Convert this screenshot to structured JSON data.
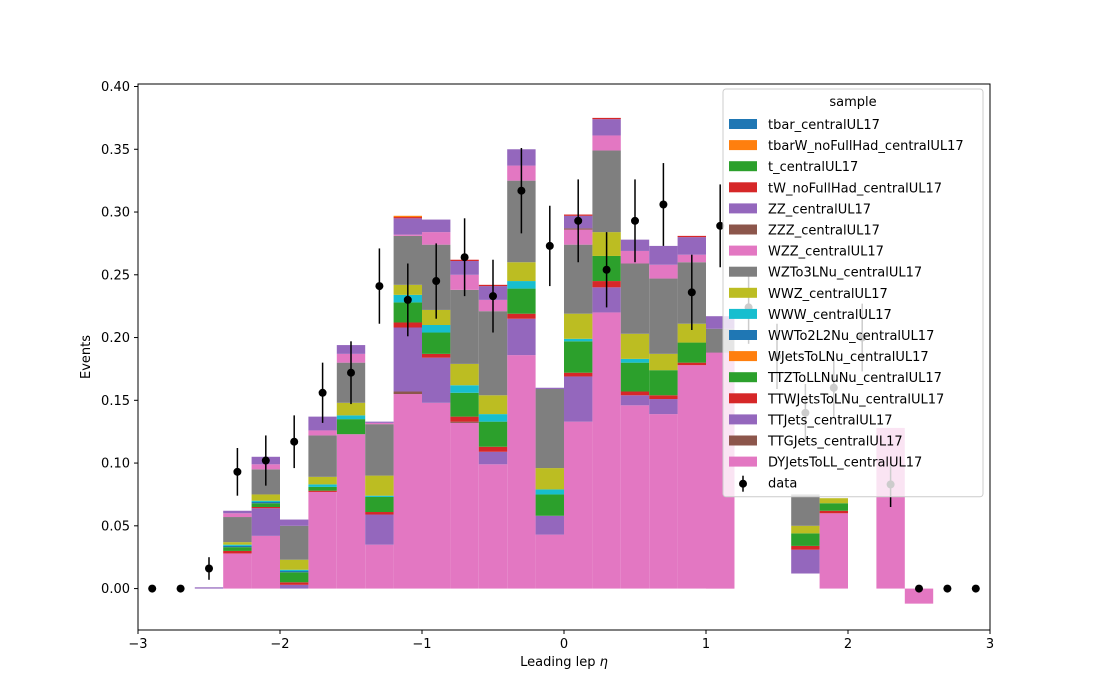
{
  "chart_data": {
    "type": "bar",
    "xlabel": "Leading lep",
    "xlabel_symbol": "η",
    "ylabel": "Events",
    "xlim": [
      -3,
      3
    ],
    "ylim": [
      -0.033,
      0.402
    ],
    "xticks": [
      -3,
      -2,
      -1,
      0,
      1,
      2,
      3
    ],
    "xtick_labels": [
      "−3",
      "−2",
      "−1",
      "0",
      "1",
      "2",
      "3"
    ],
    "yticks": [
      0.0,
      0.05,
      0.1,
      0.15,
      0.2,
      0.25,
      0.3,
      0.35,
      0.4
    ],
    "ytick_labels": [
      "0.00",
      "0.05",
      "0.10",
      "0.15",
      "0.20",
      "0.25",
      "0.30",
      "0.35",
      "0.40"
    ],
    "legend": {
      "title": "sample",
      "placement": "top-right"
    },
    "bin_edges": [
      -3.0,
      -2.8,
      -2.6,
      -2.4,
      -2.2,
      -2.0,
      -1.8,
      -1.6,
      -1.4,
      -1.2,
      -1.0,
      -0.8,
      -0.6,
      -0.4,
      -0.2,
      0.0,
      0.2,
      0.4,
      0.6,
      0.8,
      1.0,
      1.2,
      1.4,
      1.6,
      1.8,
      2.0,
      2.2,
      2.4,
      2.6,
      2.8,
      3.0
    ],
    "series": [
      {
        "name": "DYJetsToLL_centralUL17",
        "color": "#e377c2",
        "values": [
          0,
          0,
          0,
          0.028,
          0.042,
          0,
          0.077,
          0.123,
          0.035,
          0.155,
          0.148,
          0.132,
          0.099,
          0.186,
          0.043,
          0.133,
          0.22,
          0.146,
          0.139,
          0.178,
          0.112,
          0,
          0,
          0,
          0,
          0,
          0,
          0,
          0,
          0
        ]
      },
      {
        "name": "TTGJets_centralUL17",
        "color": "#8c564b",
        "values": [
          0,
          0,
          0,
          0,
          0,
          0,
          0,
          0,
          0,
          0.002,
          0,
          0.001,
          0,
          0,
          0,
          0,
          0,
          0,
          0,
          0,
          0,
          0,
          0,
          0,
          0,
          0,
          0,
          0,
          0,
          0
        ]
      },
      {
        "name": "TTJets_centralUL17",
        "color": "#9467bd",
        "values": [
          0,
          0,
          0.001,
          0,
          0.022,
          0.003,
          0,
          0,
          0.024,
          0.051,
          0.036,
          0,
          0.01,
          0.029,
          0.015,
          0.036,
          0.02,
          0.008,
          0.012,
          0,
          0,
          0,
          0,
          0,
          0,
          0,
          0,
          0,
          0,
          0
        ]
      },
      {
        "name": "TTWJetsToLNu_centralUL17",
        "color": "#d62728",
        "values": [
          0,
          0,
          0,
          0.002,
          0.001,
          0.002,
          0.001,
          0,
          0.002,
          0.004,
          0.003,
          0.004,
          0.004,
          0.004,
          0,
          0.003,
          0.005,
          0.003,
          0.003,
          0.002,
          0,
          0,
          0,
          0,
          0,
          0,
          0,
          0,
          0,
          0
        ]
      },
      {
        "name": "TTZToLLNuNu_centralUL17",
        "color": "#2ca02c",
        "values": [
          0,
          0,
          0,
          0.003,
          0.003,
          0.008,
          0.003,
          0.012,
          0.012,
          0.016,
          0.017,
          0.019,
          0.02,
          0.02,
          0.017,
          0.025,
          0.02,
          0.023,
          0.02,
          0.016,
          0.01,
          0,
          0,
          0,
          0,
          0,
          0,
          0,
          0,
          0
        ]
      },
      {
        "name": "WJetsToLNu_centralUL17",
        "color": "#ff7f0e",
        "values": [
          0,
          0,
          0,
          0,
          0,
          0,
          0,
          0,
          0,
          0,
          0,
          0,
          0,
          0,
          0,
          0,
          0,
          0,
          0,
          0,
          0,
          0,
          0,
          0,
          0,
          0,
          0,
          0,
          0,
          0
        ]
      },
      {
        "name": "WWTo2L2Nu_centralUL17",
        "color": "#1f77b4",
        "values": [
          0,
          0,
          0,
          0.001,
          0.001,
          0.001,
          0,
          0,
          0,
          0,
          0,
          0,
          0,
          0,
          0,
          0,
          0,
          0,
          0,
          0,
          0,
          0,
          0,
          0,
          0,
          0,
          0,
          0,
          0,
          0
        ]
      },
      {
        "name": "WWW_centralUL17",
        "color": "#17becf",
        "values": [
          0,
          0,
          0,
          0.001,
          0.001,
          0.001,
          0.002,
          0.003,
          0.001,
          0.006,
          0.006,
          0.006,
          0.006,
          0.006,
          0.004,
          0.002,
          0,
          0.003,
          0,
          0,
          0.005,
          0,
          0,
          0,
          0,
          0,
          0,
          0,
          0,
          0
        ]
      },
      {
        "name": "WWZ_centralUL17",
        "color": "#bcbd22",
        "values": [
          0,
          0,
          0,
          0.002,
          0.005,
          0.008,
          0.006,
          0.01,
          0.016,
          0.008,
          0.012,
          0.017,
          0.015,
          0.015,
          0.017,
          0.02,
          0.019,
          0.02,
          0.013,
          0.015,
          0.01,
          0,
          0,
          0,
          0,
          0,
          0,
          0,
          0,
          0
        ]
      },
      {
        "name": "WZTo3LNu_centralUL17",
        "color": "#7f7f7f",
        "values": [
          0,
          0,
          0,
          0.02,
          0.02,
          0.027,
          0.033,
          0.032,
          0.041,
          0.039,
          0.052,
          0.059,
          0.067,
          0.065,
          0.063,
          0.055,
          0.065,
          0.056,
          0.06,
          0.049,
          0.07,
          0,
          0,
          0,
          0,
          0,
          0,
          0,
          0,
          0
        ]
      },
      {
        "name": "WZZ_centralUL17",
        "color": "#e377c2",
        "values": [
          0,
          0,
          0,
          0.003,
          0.004,
          0,
          0.004,
          0.007,
          0.001,
          0.001,
          0.01,
          0.012,
          0.009,
          0.012,
          0,
          0.012,
          0.012,
          0.01,
          0.011,
          0.006,
          0,
          0,
          0,
          0,
          0,
          0,
          0,
          0,
          0,
          0
        ]
      },
      {
        "name": "ZZZ_centralUL17",
        "color": "#8c564b",
        "values": [
          0,
          0,
          0,
          0,
          0,
          0,
          0,
          0,
          0,
          0,
          0,
          0,
          0,
          0,
          0,
          0.001,
          0,
          0,
          0,
          0,
          0,
          0,
          0,
          0,
          0,
          0,
          0,
          0,
          0,
          0
        ]
      },
      {
        "name": "ZZ_centralUL17",
        "color": "#9467bd",
        "values": [
          0,
          0,
          0,
          0.002,
          0.006,
          0.005,
          0.011,
          0.007,
          0.001,
          0.013,
          0.01,
          0.011,
          0.011,
          0.013,
          0.001,
          0.01,
          0.013,
          0.009,
          0.015,
          0.014,
          0.01,
          0,
          0,
          0,
          0,
          0,
          0,
          0,
          0,
          0
        ]
      },
      {
        "name": "tW_noFullHad_centralUL17",
        "color": "#d62728",
        "values": [
          0,
          0,
          0,
          0,
          0,
          0,
          0,
          0,
          0,
          0.001,
          0,
          0.001,
          0.001,
          0,
          0,
          0.001,
          0.001,
          0,
          0,
          0.001,
          0,
          0,
          0,
          0,
          0,
          0,
          0,
          0,
          0,
          0
        ]
      },
      {
        "name": "t_centralUL17",
        "color": "#2ca02c",
        "values": [
          0,
          0,
          0,
          0,
          0,
          0,
          0,
          0,
          0,
          0,
          0,
          0,
          0,
          0,
          0,
          0,
          0,
          0,
          0,
          0,
          0,
          0,
          0,
          0,
          0,
          0,
          0,
          0,
          0,
          0
        ]
      },
      {
        "name": "tbarW_noFullHad_centralUL17",
        "color": "#ff7f0e",
        "values": [
          0,
          0,
          0,
          0,
          0,
          0,
          0,
          0,
          0,
          0.001,
          0,
          0,
          0,
          0,
          0,
          0,
          0,
          0,
          0,
          0,
          0,
          0,
          0,
          0,
          0,
          0,
          0,
          0,
          0,
          0
        ]
      },
      {
        "name": "tbar_centralUL17",
        "color": "#1f77b4",
        "values": [
          0,
          0,
          0,
          0,
          0,
          0,
          0,
          0,
          0,
          0,
          0,
          0,
          0,
          0,
          0,
          0,
          0,
          0,
          0,
          0,
          0,
          0,
          0,
          0,
          0,
          0,
          0,
          0,
          0,
          0
        ]
      }
    ],
    "extra_bars": [
      {
        "x0": 1.0,
        "x1": 1.2,
        "base": 0.0,
        "top": 0.188,
        "color": "#e377c2"
      },
      {
        "x0": 1.6,
        "x1": 1.8,
        "base": 0.012,
        "top": 0.031,
        "color": "#9467bd"
      },
      {
        "x0": 1.6,
        "x1": 1.8,
        "base": 0.031,
        "top": 0.034,
        "color": "#d62728"
      },
      {
        "x0": 1.6,
        "x1": 1.8,
        "base": 0.034,
        "top": 0.044,
        "color": "#2ca02c"
      },
      {
        "x0": 1.6,
        "x1": 1.8,
        "base": 0.044,
        "top": 0.05,
        "color": "#bcbd22"
      },
      {
        "x0": 1.6,
        "x1": 1.8,
        "base": 0.05,
        "top": 0.075,
        "color": "#7f7f7f"
      },
      {
        "x0": 1.8,
        "x1": 2.0,
        "base": 0.0,
        "top": 0.06,
        "color": "#e377c2"
      },
      {
        "x0": 1.8,
        "x1": 2.0,
        "base": 0.06,
        "top": 0.062,
        "color": "#d62728"
      },
      {
        "x0": 1.8,
        "x1": 2.0,
        "base": 0.062,
        "top": 0.068,
        "color": "#2ca02c"
      },
      {
        "x0": 1.8,
        "x1": 2.0,
        "base": 0.068,
        "top": 0.072,
        "color": "#bcbd22"
      },
      {
        "x0": 2.2,
        "x1": 2.4,
        "base": 0.0,
        "top": 0.128,
        "color": "#e377c2"
      },
      {
        "x0": 2.4,
        "x1": 2.6,
        "base": -0.012,
        "top": 0.0,
        "color": "#e377c2"
      }
    ],
    "data_points": [
      {
        "x": -2.9,
        "y": 0.0,
        "err": 0
      },
      {
        "x": -2.7,
        "y": 0.0,
        "err": 0
      },
      {
        "x": -2.5,
        "y": 0.016,
        "err": 0.009
      },
      {
        "x": -2.3,
        "y": 0.093,
        "err": 0.019
      },
      {
        "x": -2.1,
        "y": 0.102,
        "err": 0.02
      },
      {
        "x": -1.9,
        "y": 0.117,
        "err": 0.021
      },
      {
        "x": -1.7,
        "y": 0.156,
        "err": 0.024
      },
      {
        "x": -1.5,
        "y": 0.172,
        "err": 0.025
      },
      {
        "x": -1.3,
        "y": 0.241,
        "err": 0.03
      },
      {
        "x": -1.1,
        "y": 0.23,
        "err": 0.029
      },
      {
        "x": -0.9,
        "y": 0.245,
        "err": 0.03
      },
      {
        "x": -0.7,
        "y": 0.264,
        "err": 0.031
      },
      {
        "x": -0.5,
        "y": 0.233,
        "err": 0.029
      },
      {
        "x": -0.3,
        "y": 0.317,
        "err": 0.034
      },
      {
        "x": -0.1,
        "y": 0.273,
        "err": 0.032
      },
      {
        "x": 0.1,
        "y": 0.293,
        "err": 0.033
      },
      {
        "x": 0.3,
        "y": 0.254,
        "err": 0.03
      },
      {
        "x": 0.5,
        "y": 0.293,
        "err": 0.033
      },
      {
        "x": 0.7,
        "y": 0.306,
        "err": 0.033
      },
      {
        "x": 0.9,
        "y": 0.236,
        "err": 0.03
      },
      {
        "x": 1.1,
        "y": 0.289,
        "err": 0.033
      },
      {
        "x": 1.3,
        "y": 0.224,
        "err": 0.029
      },
      {
        "x": 1.5,
        "y": 0.185,
        "err": 0.026
      },
      {
        "x": 1.7,
        "y": 0.14,
        "err": 0.023
      },
      {
        "x": 1.9,
        "y": 0.16,
        "err": 0.024
      },
      {
        "x": 2.1,
        "y": 0.2,
        "err": 0.027
      },
      {
        "x": 2.3,
        "y": 0.083,
        "err": 0.018
      },
      {
        "x": 2.5,
        "y": 0.0,
        "err": 0
      },
      {
        "x": 2.7,
        "y": 0.0,
        "err": 0
      },
      {
        "x": 2.9,
        "y": 0.0,
        "err": 0
      }
    ],
    "data_label": "data"
  }
}
